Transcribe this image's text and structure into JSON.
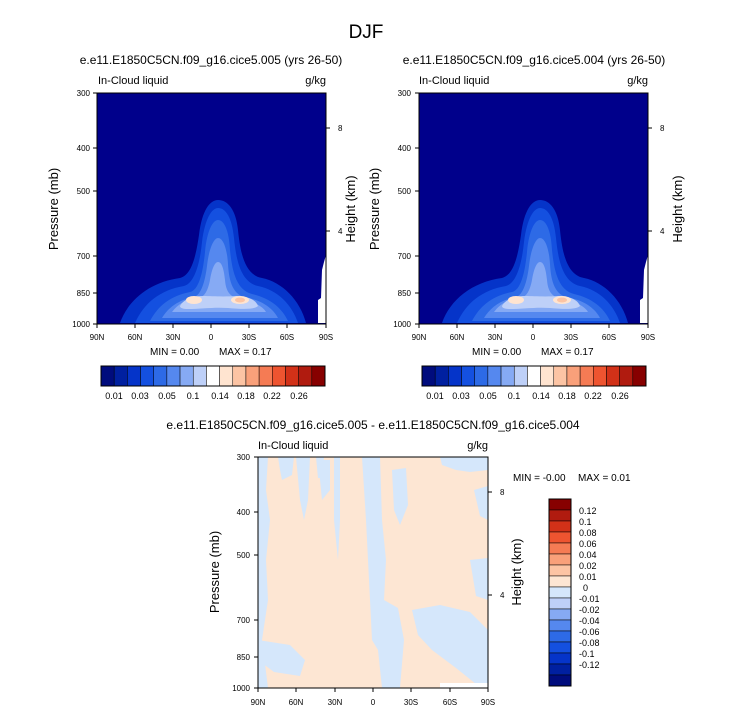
{
  "page_title": "DJF",
  "colors": {
    "navy": "#00008b",
    "abs_scale": [
      "#000c7d",
      "#0020a0",
      "#0534c9",
      "#1450e0",
      "#2d6ae6",
      "#5588ef",
      "#86aaf4",
      "#bed0f8",
      "#ffffff",
      "#ffe4d0",
      "#fcc4a4",
      "#f9a07a",
      "#f57b54",
      "#ee5430",
      "#d23118",
      "#b01b0f",
      "#870000"
    ],
    "diff_scale": [
      "#000c7d",
      "#0020a0",
      "#0534c9",
      "#1450e0",
      "#2d6ae6",
      "#5588ef",
      "#86aaf4",
      "#bed0f8",
      "#d5e7fb",
      "#fde6d3",
      "#fcc4a4",
      "#f9a07a",
      "#f57b54",
      "#ee5430",
      "#d23118",
      "#b01b0f",
      "#870000"
    ]
  },
  "chart_data": [
    {
      "type": "heatmap",
      "panel": "left",
      "title": "e.e11.E1850C5CN.f09_g16.cice5.005 (yrs 26-50)",
      "field_label": "In-Cloud liquid",
      "units": "g/kg",
      "xlabel": "",
      "ylabel": "Pressure (mb)",
      "y2label": "Height (km)",
      "x_ticks": [
        "90N",
        "60N",
        "30N",
        "0",
        "30S",
        "60S",
        "90S"
      ],
      "y_ticks": [
        "300",
        "400",
        "500",
        "700",
        "850",
        "1000"
      ],
      "y2_ticks": [
        "8",
        "4"
      ],
      "ylim": [
        300,
        1000
      ],
      "xlim": [
        90,
        -90
      ],
      "min_text": "MIN =   0.00",
      "max_text": "MAX =   0.17",
      "peak_latitudes": [
        20,
        -20
      ],
      "peak_pressure_mb": 870,
      "peak_value": 0.17
    },
    {
      "type": "heatmap",
      "panel": "right",
      "title": "e.e11.E1850C5CN.f09_g16.cice5.004 (yrs 26-50)",
      "field_label": "In-Cloud liquid",
      "units": "g/kg",
      "xlabel": "",
      "ylabel": "Pressure (mb)",
      "y2label": "Height (km)",
      "x_ticks": [
        "90N",
        "60N",
        "30N",
        "0",
        "30S",
        "60S",
        "90S"
      ],
      "y_ticks": [
        "300",
        "400",
        "500",
        "700",
        "850",
        "1000"
      ],
      "y2_ticks": [
        "8",
        "4"
      ],
      "ylim": [
        300,
        1000
      ],
      "xlim": [
        90,
        -90
      ],
      "min_text": "MIN =   0.00",
      "max_text": "MAX =   0.17",
      "peak_latitudes": [
        20,
        -20
      ],
      "peak_pressure_mb": 870,
      "peak_value": 0.17
    },
    {
      "type": "heatmap",
      "panel": "difference",
      "title": "e.e11.E1850C5CN.f09_g16.cice5.005 - e.e11.E1850C5CN.f09_g16.cice5.004",
      "field_label": "In-Cloud liquid",
      "units": "g/kg",
      "xlabel": "",
      "ylabel": "Pressure (mb)",
      "y2label": "Height (km)",
      "x_ticks": [
        "90N",
        "60N",
        "30N",
        "0",
        "30S",
        "60S",
        "90S"
      ],
      "y_ticks": [
        "300",
        "400",
        "500",
        "700",
        "850",
        "1000"
      ],
      "y2_ticks": [
        "8",
        "4"
      ],
      "ylim": [
        300,
        1000
      ],
      "xlim": [
        90,
        -90
      ],
      "min_text": "MIN =  -0.00",
      "max_text": "MAX =   0.01"
    }
  ],
  "colorbar_abs": {
    "labels": [
      "0.01",
      "0.03",
      "0.05",
      "0.1",
      "0.14",
      "0.18",
      "0.22",
      "0.26"
    ]
  },
  "colorbar_diff": {
    "labels": [
      "0.12",
      "0.1",
      "0.08",
      "0.06",
      "0.04",
      "0.02",
      "0.01",
      "0",
      "-0.01",
      "-0.02",
      "-0.04",
      "-0.06",
      "-0.08",
      "-0.1",
      "-0.12"
    ]
  }
}
